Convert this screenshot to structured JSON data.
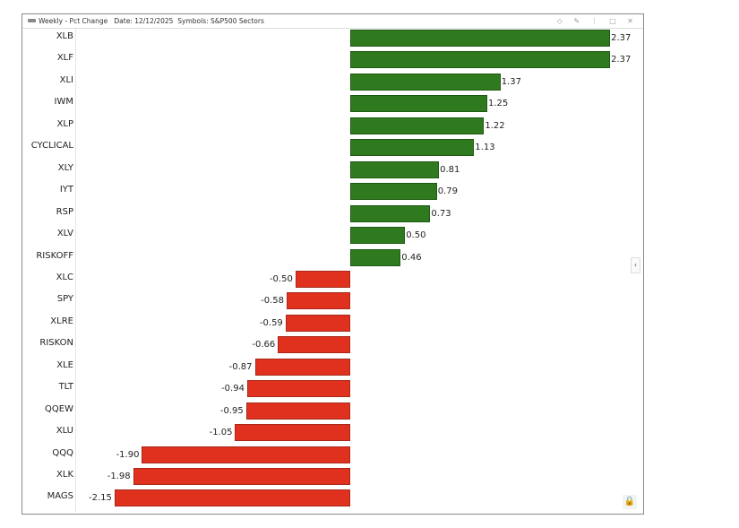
{
  "window": {
    "title": "Weekly - Pct Change",
    "date": "Date: 12/12/2025",
    "symbols": "Symbols: S&P500 Sectors",
    "controls": "◇ ✎ ⋮ □ ✕"
  },
  "chart_data": {
    "type": "bar",
    "orientation": "horizontal",
    "title": "Weekly - Pct Change",
    "subtitle": "Date: 12/12/2025 Symbols: S&P500 Sectors",
    "categories": [
      "XLB",
      "XLF",
      "XLI",
      "IWM",
      "XLP",
      "CYCLICAL",
      "XLY",
      "IYT",
      "RSP",
      "XLV",
      "RISKOFF",
      "XLC",
      "SPY",
      "XLRE",
      "RISKON",
      "XLE",
      "TLT",
      "QQEW",
      "XLU",
      "QQQ",
      "XLK",
      "MAGS"
    ],
    "values": [
      2.37,
      2.37,
      1.37,
      1.25,
      1.22,
      1.13,
      0.81,
      0.79,
      0.73,
      0.5,
      0.46,
      -0.5,
      -0.58,
      -0.59,
      -0.66,
      -0.87,
      -0.94,
      -0.95,
      -1.05,
      -1.9,
      -1.98,
      -2.15
    ],
    "labels": [
      "2.37",
      "2.37",
      "1.37",
      "1.25",
      "1.22",
      "1.13",
      "0.81",
      "0.79",
      "0.73",
      "0.50",
      "0.46",
      "-0.50",
      "-0.58",
      "-0.59",
      "-0.66",
      "-0.87",
      "-0.94",
      "-0.95",
      "-1.05",
      "-1.90",
      "-1.98",
      "-2.15"
    ],
    "colors": {
      "positive": "#2f7a1f",
      "negative": "#e0311f"
    },
    "xlabel": "",
    "ylabel": ""
  }
}
